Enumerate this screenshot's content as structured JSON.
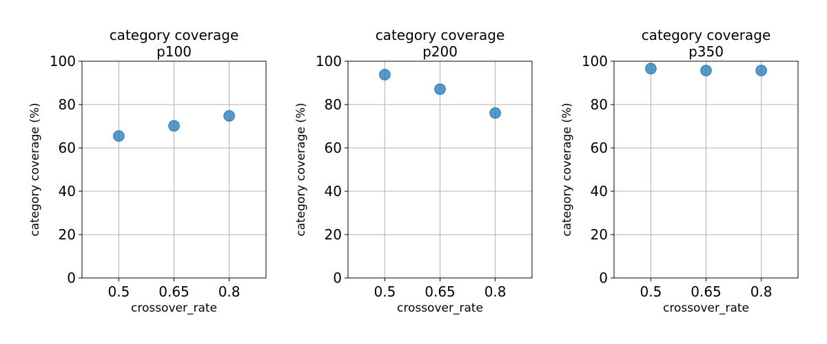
{
  "chart_data": [
    {
      "type": "scatter",
      "title": [
        "category coverage",
        "p100"
      ],
      "xlabel": "crossover_rate",
      "ylabel": "category coverage (%)",
      "categories": [
        "0.5",
        "0.65",
        "0.8"
      ],
      "values": [
        65.5,
        70.2,
        74.8
      ],
      "ylim": [
        0,
        100
      ],
      "yticks": [
        "0",
        "20",
        "40",
        "60",
        "80",
        "100"
      ],
      "grid": true,
      "color": "#1f77b4"
    },
    {
      "type": "scatter",
      "title": [
        "category coverage",
        "p200"
      ],
      "xlabel": "crossover_rate",
      "ylabel": "category coverage (%)",
      "categories": [
        "0.5",
        "0.65",
        "0.8"
      ],
      "values": [
        93.8,
        87.1,
        76.1
      ],
      "ylim": [
        0,
        100
      ],
      "yticks": [
        "0",
        "20",
        "40",
        "60",
        "80",
        "100"
      ],
      "grid": true,
      "color": "#1f77b4"
    },
    {
      "type": "scatter",
      "title": [
        "category coverage",
        "p350"
      ],
      "xlabel": "crossover_rate",
      "ylabel": "category coverage (%)",
      "categories": [
        "0.5",
        "0.65",
        "0.8"
      ],
      "values": [
        96.6,
        95.7,
        95.7
      ],
      "ylim": [
        0,
        100
      ],
      "yticks": [
        "0",
        "20",
        "40",
        "60",
        "80",
        "100"
      ],
      "grid": true,
      "color": "#1f77b4"
    }
  ]
}
